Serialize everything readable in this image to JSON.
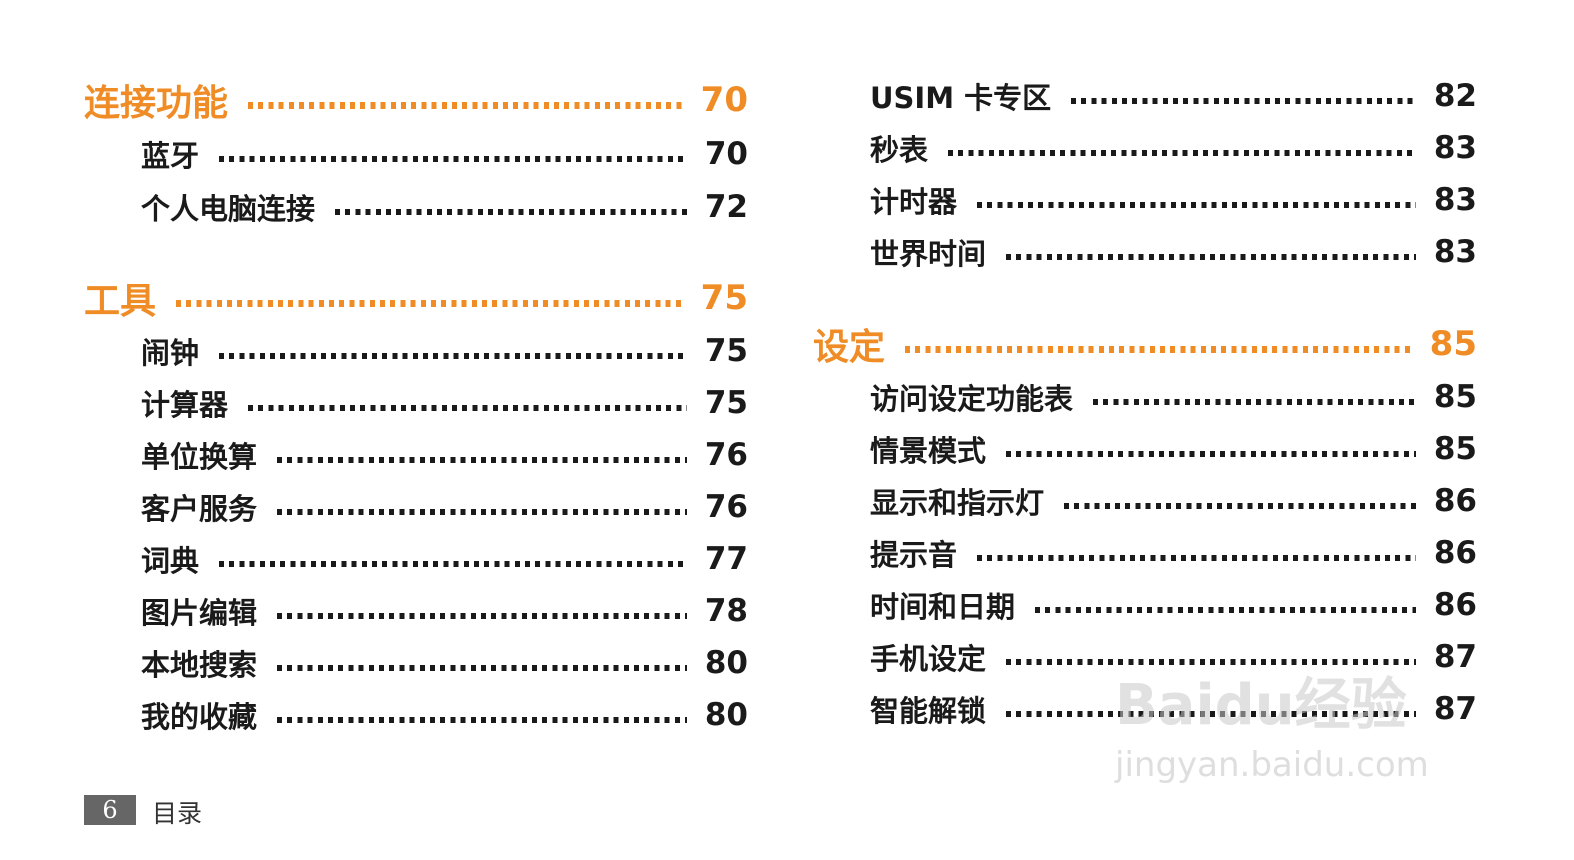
{
  "left": [
    {
      "title": "连接功能",
      "page": "70",
      "type": "section"
    },
    {
      "title": "蓝牙",
      "page": "70"
    },
    {
      "title": "个人电脑连接",
      "page": "72"
    },
    {
      "title": "工具",
      "page": "75",
      "type": "section"
    },
    {
      "title": "闹钟",
      "page": "75"
    },
    {
      "title": "计算器",
      "page": "75"
    },
    {
      "title": "单位换算",
      "page": "76"
    },
    {
      "title": "客户服务",
      "page": "76"
    },
    {
      "title": "词典",
      "page": "77"
    },
    {
      "title": "图片编辑",
      "page": "78"
    },
    {
      "title": "本地搜索",
      "page": "80"
    },
    {
      "title": "我的收藏",
      "page": "80"
    }
  ],
  "right": [
    {
      "title": "USIM 卡专区",
      "page": "82"
    },
    {
      "title": "秒表",
      "page": "83"
    },
    {
      "title": "计时器",
      "page": "83"
    },
    {
      "title": "世界时间",
      "page": "83"
    },
    {
      "title": "设定",
      "page": "85",
      "type": "section"
    },
    {
      "title": "访问设定功能表",
      "page": "85"
    },
    {
      "title": "情景模式",
      "page": "85"
    },
    {
      "title": "显示和指示灯",
      "page": "86"
    },
    {
      "title": "提示音",
      "page": "86"
    },
    {
      "title": "时间和日期",
      "page": "86"
    },
    {
      "title": "手机设定",
      "page": "87"
    },
    {
      "title": "智能解锁",
      "page": "87"
    }
  ],
  "footer": {
    "page_number": "6",
    "title": "目录"
  },
  "watermark": {
    "logo": "Baidu经验",
    "url": "jingyan.baidu.com"
  },
  "colors": {
    "section": "#ef8c26",
    "text": "#1a1a1a",
    "footer_box": "#666666"
  }
}
